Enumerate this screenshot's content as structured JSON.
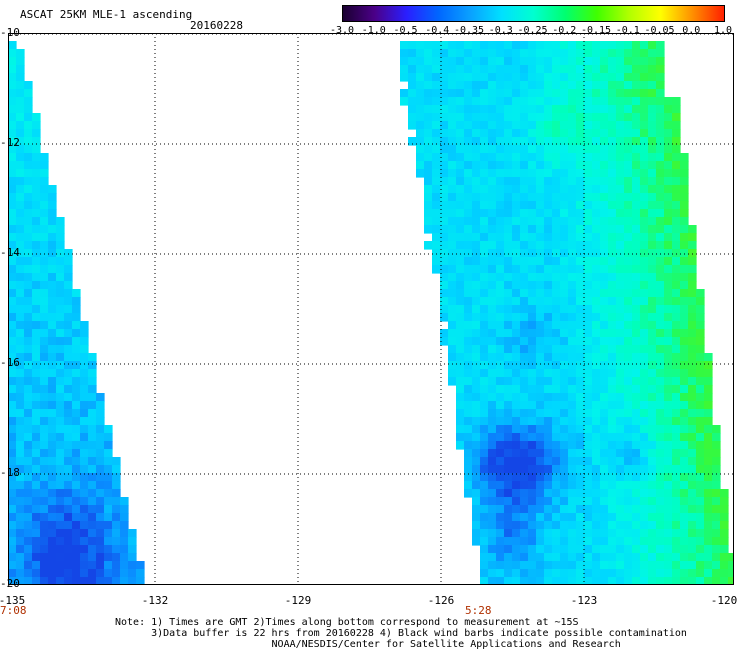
{
  "header": {
    "title": "ASCAT 25KM MLE-1 ascending",
    "date": "20160228"
  },
  "colorbar": {
    "labels": [
      "-3.0",
      "-1.0",
      "-0.5",
      "-0.4",
      "-0.35",
      "-0.3",
      "-0.25",
      "-0.2",
      "-0.15",
      "-0.1",
      "-0.05",
      "0.0",
      "1.0"
    ],
    "colors": [
      "#1a0030",
      "#4b0088",
      "#2a1fff",
      "#0066ff",
      "#0aa0ff",
      "#00e0ff",
      "#00ffd0",
      "#00ff70",
      "#40ff00",
      "#b0ff00",
      "#ffff00",
      "#ff9000",
      "#ff2000"
    ]
  },
  "axes": {
    "y_ticks": [
      "-10",
      "-12",
      "-14",
      "-16",
      "-18",
      "-20"
    ],
    "x_ticks": [
      "-135",
      "-132",
      "-129",
      "-126",
      "-123",
      "-120"
    ]
  },
  "times": [
    "7:08",
    "5:28"
  ],
  "notes": [
    "Note: 1) Times are GMT 2)Times along bottom correspond to measurement at ~15S",
    "      3)Data buffer is 22 hrs from 20160228 4) Black wind barbs indicate possible contamination",
    "                          NOAA/NESDIS/Center for Satellite Applications and Research"
  ]
}
